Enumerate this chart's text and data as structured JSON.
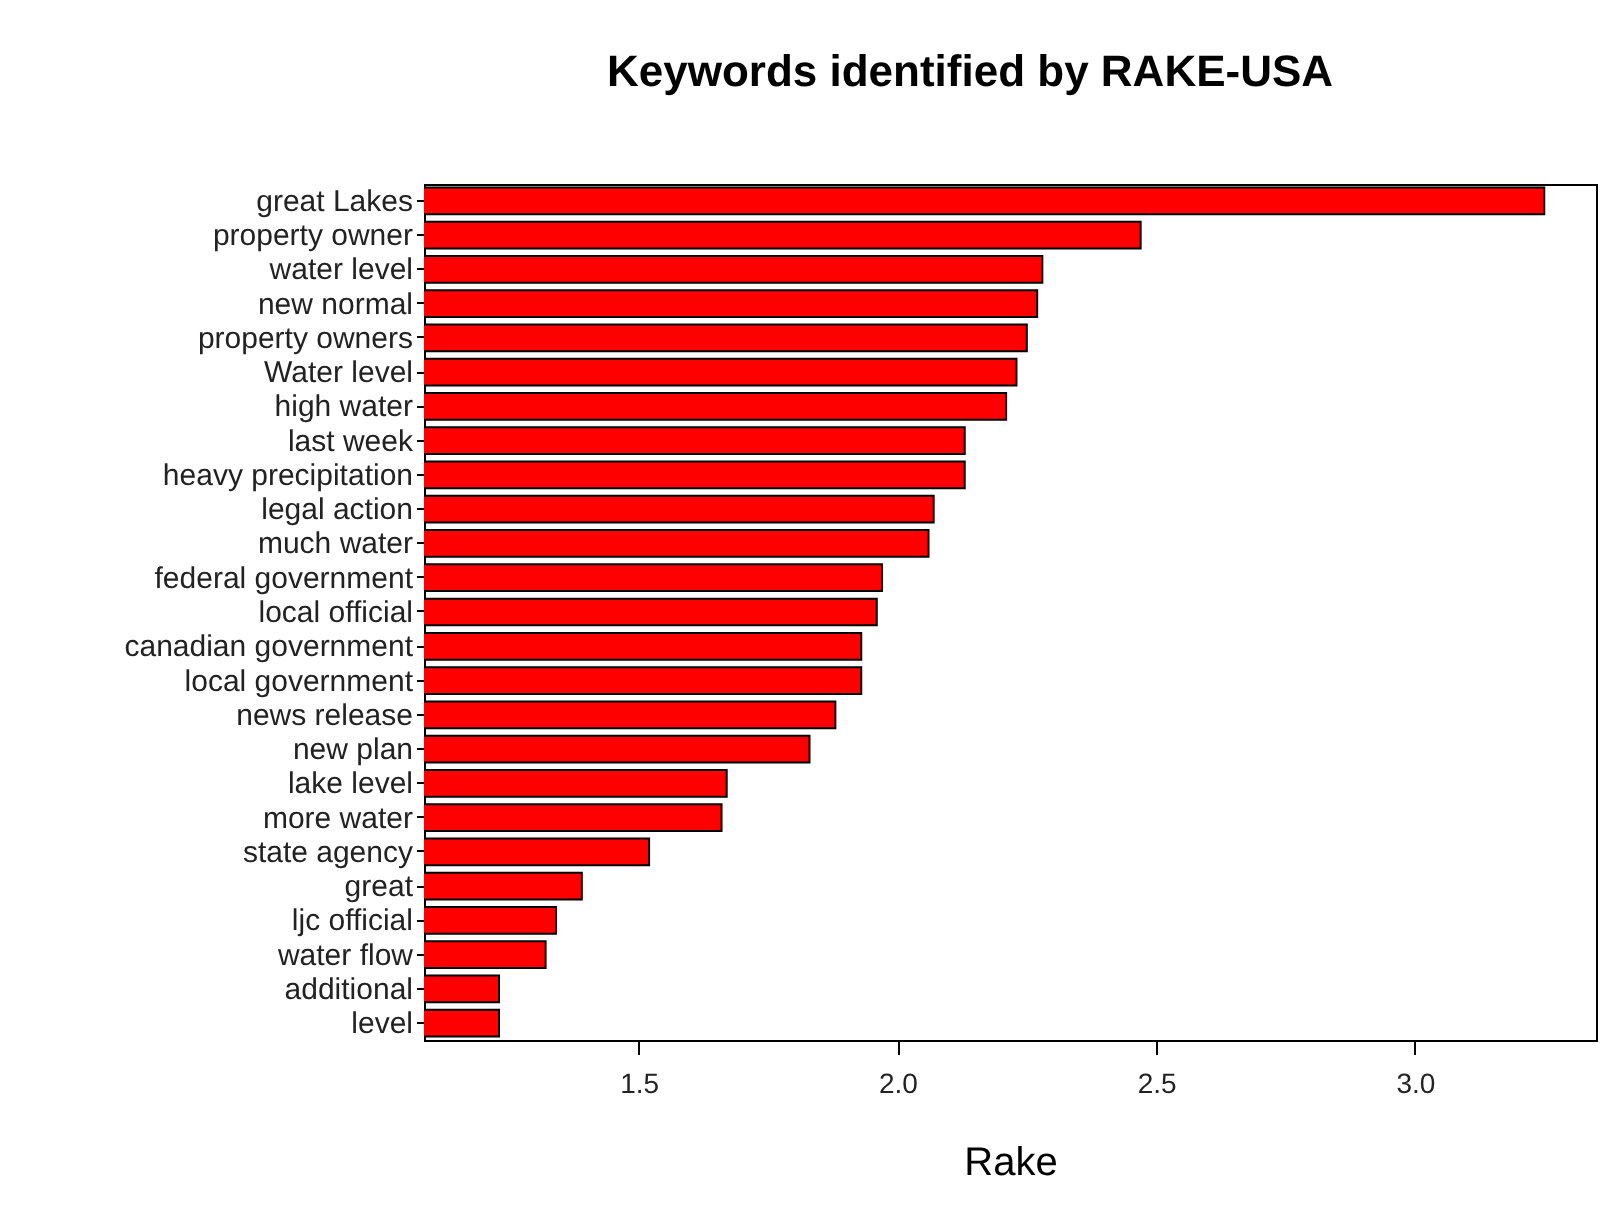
{
  "chart_data": {
    "type": "bar",
    "orientation": "horizontal",
    "title": "Keywords identified by RAKE-USA",
    "xlabel": "Rake",
    "categories": [
      "great Lakes",
      "property owner",
      "water level",
      "new normal",
      "property owners",
      "Water level",
      "high water",
      "last week",
      "heavy precipitation",
      "legal action",
      "much water",
      "federal government",
      "local official",
      "canadian government",
      "local government",
      "news release",
      "new plan",
      "lake level",
      "more water",
      "state agency",
      "great",
      "ljc official",
      "water flow",
      "additional",
      "level"
    ],
    "values": [
      3.25,
      2.47,
      2.28,
      2.27,
      2.25,
      2.23,
      2.21,
      2.13,
      2.13,
      2.07,
      2.06,
      1.97,
      1.96,
      1.93,
      1.93,
      1.88,
      1.83,
      1.67,
      1.66,
      1.52,
      1.39,
      1.34,
      1.32,
      1.23,
      1.23
    ],
    "color": "#ff0000",
    "xlim": [
      1.085,
      3.35
    ],
    "xticks": [
      1.5,
      {
        "value": 2.0,
        "label": "2.0"
      },
      2.5,
      {
        "value": 3.0,
        "label": "3.0"
      }
    ],
    "grid": false
  }
}
